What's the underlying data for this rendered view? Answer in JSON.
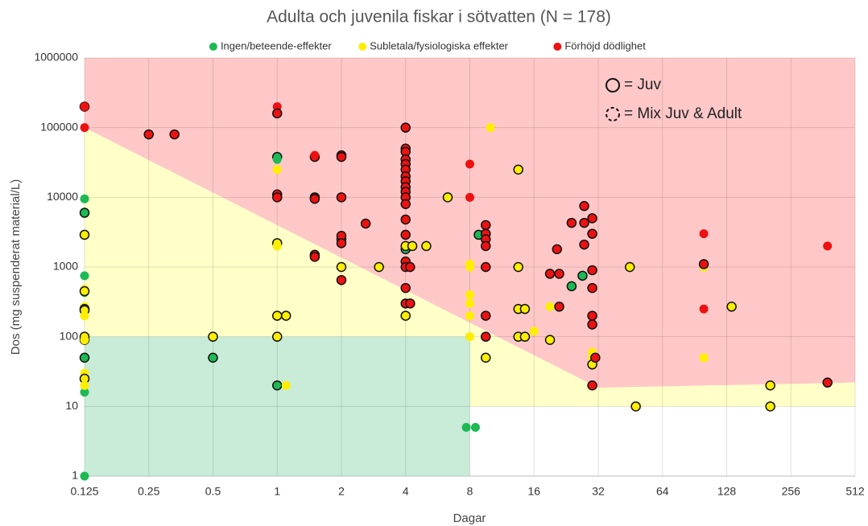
{
  "chart_data": {
    "type": "scatter",
    "title": "Adulta och juvenila fiskar i sötvatten (N = 178)",
    "xlabel": "Dagar",
    "ylabel": "Dos (mg suspenderat material/L)",
    "xscale": "log",
    "yscale": "log",
    "xlim": [
      0.125,
      512
    ],
    "ylim": [
      1,
      1000000
    ],
    "xticks": [
      0.125,
      0.25,
      0.5,
      1,
      2,
      4,
      8,
      16,
      32,
      64,
      128,
      256,
      512
    ],
    "yticks": [
      1,
      10,
      100,
      1000,
      10000,
      100000,
      1000000
    ],
    "grid": true,
    "legend": "top",
    "annotations": [
      "= Juv",
      "= Mix Juv & Adult"
    ],
    "regions": [
      {
        "color": "#ffc8c8",
        "points": [
          [
            0.125,
            1000000
          ],
          [
            512,
            1000000
          ],
          [
            512,
            22
          ],
          [
            32,
            18.5
          ],
          [
            0.125,
            100000
          ]
        ]
      },
      {
        "color": "#ffffc8",
        "points": [
          [
            0.125,
            100000
          ],
          [
            32,
            18.5
          ],
          [
            512,
            22
          ],
          [
            512,
            10
          ],
          [
            8,
            10
          ],
          [
            8,
            100
          ],
          [
            0.125,
            100
          ]
        ]
      },
      {
        "color": "#c8ecd8",
        "points": [
          [
            0.125,
            1
          ],
          [
            8,
            1
          ],
          [
            8,
            100
          ],
          [
            0.125,
            100
          ]
        ]
      }
    ],
    "series": [
      {
        "name": "Ingen/beteende-effekter",
        "color": "#1db954",
        "x": [
          0.125,
          0.125,
          0.125,
          0.125,
          0.125,
          0.125,
          0.125,
          0.125,
          0.5,
          1,
          1,
          1,
          4,
          4,
          7.7,
          8.5,
          8.8,
          24,
          27
        ],
        "y": [
          9500,
          6000,
          750,
          430,
          90,
          50,
          16,
          1,
          50,
          38000,
          35000,
          20,
          2000,
          1800,
          5,
          5,
          2900,
          530,
          750
        ],
        "outline": [
          false,
          true,
          false,
          false,
          true,
          true,
          false,
          false,
          true,
          true,
          false,
          true,
          false,
          true,
          false,
          false,
          true,
          true,
          true
        ]
      },
      {
        "name": "Subletala/fysiologiska effekter",
        "color": "#ffee00",
        "x": [
          0.125,
          0.125,
          0.125,
          0.125,
          0.125,
          0.125,
          0.125,
          0.125,
          0.125,
          0.125,
          0.125,
          0.125,
          0.5,
          1,
          1,
          1,
          1,
          1,
          1.1,
          1.1,
          2,
          2,
          2,
          3,
          4,
          4,
          4.3,
          5,
          6.3,
          8,
          8,
          8,
          8,
          8,
          8,
          10,
          9.5,
          9.5,
          9.5,
          13.5,
          13.5,
          13.5,
          13.5,
          14.5,
          14.5,
          16,
          19,
          19,
          30,
          30,
          30,
          45,
          48,
          100,
          100,
          135,
          205,
          205
        ],
        "y": [
          2900,
          480,
          450,
          270,
          250,
          240,
          200,
          100,
          90,
          30,
          25,
          20,
          100,
          25000,
          2200,
          2000,
          200,
          100,
          200,
          20,
          2500,
          2200,
          1000,
          1000,
          200,
          2000,
          2000,
          2000,
          10000,
          1100,
          1000,
          400,
          300,
          200,
          100,
          100000,
          3000,
          2500,
          50,
          25000,
          1000,
          250,
          100,
          250,
          100,
          120,
          270,
          90,
          60,
          50,
          40,
          1000,
          10,
          1000,
          50,
          270,
          20,
          10
        ],
        "outline": [
          true,
          false,
          true,
          false,
          true,
          true,
          false,
          true,
          false,
          false,
          true,
          false,
          true,
          false,
          true,
          false,
          true,
          true,
          true,
          false,
          true,
          false,
          true,
          true,
          true,
          true,
          true,
          true,
          true,
          false,
          false,
          false,
          false,
          false,
          false,
          false,
          true,
          false,
          true,
          true,
          true,
          true,
          true,
          true,
          true,
          false,
          false,
          true,
          false,
          false,
          true,
          true,
          true,
          false,
          false,
          true,
          true,
          true
        ]
      },
      {
        "name": "Förhöjd dödlighet",
        "color": "#ee1111",
        "x": [
          0.125,
          0.125,
          0.125,
          0.25,
          0.33,
          1,
          1,
          1,
          1,
          1.5,
          1.5,
          1.5,
          1.5,
          1.5,
          1.5,
          2,
          2,
          2,
          2,
          2,
          2,
          2.6,
          4,
          4,
          4,
          4,
          4,
          4,
          4,
          4,
          4,
          4,
          4,
          4,
          4,
          4,
          4,
          4,
          4,
          4,
          4.2,
          4.2,
          8,
          8,
          9.5,
          9.5,
          9.5,
          9.5,
          9.5,
          9.5,
          9.5,
          19,
          20.5,
          21,
          21,
          24,
          27.5,
          27.5,
          27.5,
          30,
          30,
          30,
          30,
          30,
          30,
          30,
          31,
          100,
          100,
          100,
          380,
          380
        ],
        "y": [
          200000,
          200000,
          100000,
          80000,
          80000,
          200000,
          160000,
          11000,
          10000,
          38000,
          40000,
          10000,
          9500,
          1500,
          1400,
          40000,
          38000,
          10000,
          2800,
          2200,
          650,
          4200,
          100000,
          50000,
          45000,
          35000,
          30000,
          25000,
          20000,
          17000,
          14000,
          12000,
          10000,
          8000,
          4800,
          2900,
          1200,
          1000,
          500,
          300,
          300,
          1000,
          30000,
          10000,
          4000,
          3000,
          2500,
          2000,
          1000,
          200,
          100,
          800,
          1800,
          800,
          270,
          4300,
          7500,
          4300,
          2100,
          5000,
          3000,
          900,
          500,
          200,
          150,
          20,
          50,
          3000,
          1100,
          250,
          2000,
          22
        ],
        "outline": [
          true,
          false,
          false,
          true,
          true,
          false,
          true,
          true,
          true,
          true,
          false,
          true,
          true,
          true,
          true,
          true,
          true,
          true,
          true,
          true,
          true,
          true,
          true,
          true,
          true,
          true,
          true,
          true,
          true,
          true,
          true,
          true,
          true,
          true,
          true,
          true,
          true,
          true,
          true,
          true,
          true,
          true,
          false,
          false,
          true,
          true,
          true,
          true,
          true,
          true,
          true,
          true,
          true,
          true,
          true,
          true,
          true,
          true,
          true,
          true,
          true,
          true,
          true,
          true,
          true,
          true,
          true,
          false,
          true,
          false,
          false,
          true
        ]
      }
    ]
  }
}
